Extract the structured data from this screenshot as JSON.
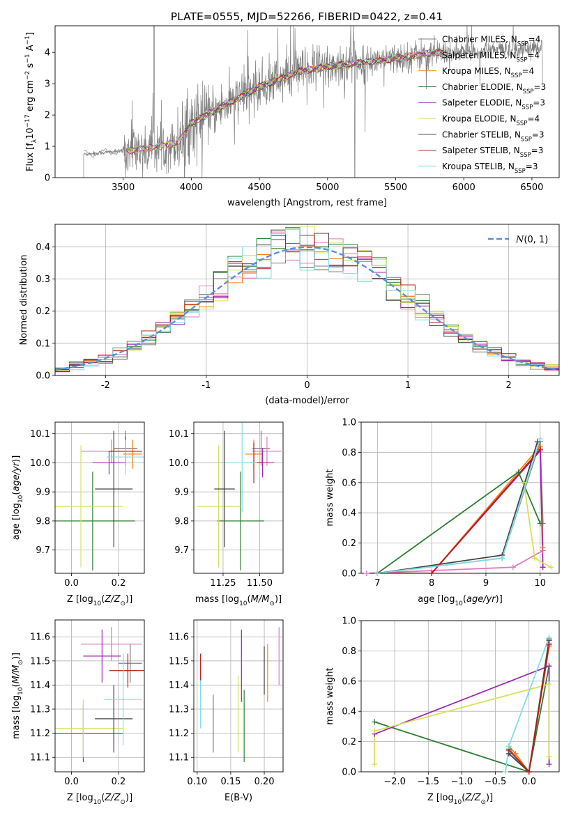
{
  "figure": {
    "title": "PLATE=0555, MJD=52266, FIBERID=0422, z=0.41"
  },
  "series_names": [
    "Chabrier MILES, N_SSP=4",
    "Salpeter MILES, N_SSP=4",
    "Kroupa MILES, N_SSP=4",
    "Chabrier ELODIE, N_SSP=3",
    "Salpeter ELODIE, N_SSP=3",
    "Kroupa ELODIE, N_SSP=4",
    "Chabrier STELIB, N_SSP=3",
    "Salpeter STELIB, N_SSP=3",
    "Kroupa STELIB, N_SSP=3"
  ],
  "colors": {
    "data": "#7f7f7f",
    "series": [
      "#7f7f7f",
      "#e377c2",
      "#ff7f0e",
      "#2e7d32",
      "#9c27b0",
      "#d4e157",
      "#444444",
      "#b71c1c",
      "#80deea"
    ],
    "gauss": "#5b8fd6",
    "grid": "#b0b0b0"
  },
  "chart_data": [
    {
      "type": "line",
      "panel": "spectrum",
      "xlabel": "wavelength [Angstrom, rest frame]",
      "ylabel": "Flux [f_λ 10^-17 erg cm^-2 s^-1 A^-1]",
      "xlim": [
        3000,
        6700
      ],
      "ylim": [
        0,
        4.85
      ],
      "xticks": [
        3500,
        4000,
        4500,
        5000,
        5500,
        6000,
        6500
      ],
      "yticks": [
        0,
        1,
        2,
        3,
        4
      ],
      "grid": false,
      "legend": "upper right",
      "continuum_knots": [
        [
          3210,
          0.75
        ],
        [
          3500,
          0.85
        ],
        [
          3700,
          0.95
        ],
        [
          3900,
          1.1
        ],
        [
          4000,
          1.75
        ],
        [
          4200,
          2.2
        ],
        [
          4500,
          2.9
        ],
        [
          4800,
          3.4
        ],
        [
          5000,
          3.55
        ],
        [
          5500,
          3.8
        ],
        [
          5800,
          4.0
        ],
        [
          6300,
          4.1
        ],
        [
          6580,
          4.15
        ]
      ],
      "data_range": [
        3210,
        6580
      ]
    },
    {
      "type": "histogram",
      "panel": "residuals",
      "xlabel": "(data-model)/error",
      "ylabel": "Normed distribution",
      "xlim": [
        -2.5,
        2.5
      ],
      "ylim": [
        0,
        0.47
      ],
      "xticks": [
        -2,
        -1,
        0,
        1,
        2
      ],
      "yticks": [
        0.0,
        0.1,
        0.2,
        0.3,
        0.4
      ],
      "grid": true,
      "legend": "upper right",
      "gauss_label": "N(0,1)",
      "bin_edges": [
        -2.5,
        2.5
      ],
      "bin_count": 35
    },
    {
      "type": "scatter",
      "panel": "age-vs-Z",
      "xlabel": "Z [log10(Z/Z⊙)]",
      "ylabel": "age [log10(age/yr)]",
      "xlim": [
        -0.07,
        0.31
      ],
      "ylim": [
        9.62,
        10.14
      ],
      "xticks": [
        0.0,
        0.2
      ],
      "yticks": [
        9.7,
        9.8,
        9.9,
        10.0,
        10.1
      ],
      "grid": true,
      "points": [
        {
          "x": 0.23,
          "y": 10.05,
          "xerr": 0.05,
          "yerr": 0.06
        },
        {
          "x": 0.17,
          "y": 10.04,
          "xerr": 0.13,
          "yerr": 0.04
        },
        {
          "x": 0.26,
          "y": 10.03,
          "xerr": 0.04,
          "yerr": 0.05
        },
        {
          "x": 0.09,
          "y": 9.8,
          "xerr": 0.18,
          "yerr": 0.17
        },
        {
          "x": 0.16,
          "y": 10.0,
          "xerr": 0.07,
          "yerr": 0.04
        },
        {
          "x": 0.04,
          "y": 9.85,
          "xerr": 0.18,
          "yerr": 0.21
        },
        {
          "x": 0.18,
          "y": 9.91,
          "xerr": 0.08,
          "yerr": 0.2
        },
        {
          "x": 0.23,
          "y": 10.04,
          "xerr": 0.07,
          "yerr": 0.05
        },
        {
          "x": 0.23,
          "y": 10.02,
          "xerr": 0.08,
          "yerr": 0.06
        }
      ]
    },
    {
      "type": "scatter",
      "panel": "age-vs-mass",
      "xlabel": "mass [log10(M/M⊙)]",
      "ylabel": "",
      "xlim": [
        11.05,
        11.66
      ],
      "ylim": [
        9.62,
        10.14
      ],
      "xticks": [
        11.25,
        11.5
      ],
      "yticks": [
        9.7,
        9.8,
        9.9,
        10.0,
        10.1
      ],
      "grid": true,
      "points": [
        {
          "x": 11.51,
          "y": 10.05,
          "xerr": 0.06,
          "yerr": 0.06
        },
        {
          "x": 11.55,
          "y": 10.04,
          "xerr": 0.1,
          "yerr": 0.05
        },
        {
          "x": 11.46,
          "y": 10.03,
          "xerr": 0.06,
          "yerr": 0.05
        },
        {
          "x": 11.37,
          "y": 9.8,
          "xerr": 0.16,
          "yerr": 0.17
        },
        {
          "x": 11.52,
          "y": 10.0,
          "xerr": 0.08,
          "yerr": 0.05
        },
        {
          "x": 11.22,
          "y": 9.85,
          "xerr": 0.15,
          "yerr": 0.21
        },
        {
          "x": 11.26,
          "y": 9.91,
          "xerr": 0.07,
          "yerr": 0.2
        },
        {
          "x": 11.46,
          "y": 10.0,
          "xerr": 0.06,
          "yerr": 0.07
        },
        {
          "x": 11.38,
          "y": 10.0,
          "xerr": 0.1,
          "yerr": 0.17
        }
      ]
    },
    {
      "type": "line",
      "panel": "massweight-vs-age",
      "xlabel": "age [log10(age/yr)]",
      "ylabel": "mass weight",
      "xlim": [
        6.7,
        10.35
      ],
      "ylim": [
        0,
        1.0
      ],
      "xticks": [
        7,
        8,
        9,
        10
      ],
      "yticks": [
        0.0,
        0.2,
        0.4,
        0.6,
        0.8,
        1.0
      ],
      "grid": true,
      "series": [
        {
          "x": [
            7.0,
            9.3,
            10.0,
            10.05
          ],
          "y": [
            0.0,
            0.1,
            0.87,
            0.33
          ]
        },
        {
          "x": [
            6.8,
            9.5,
            10.05
          ],
          "y": [
            0.0,
            0.04,
            0.15
          ]
        },
        {
          "x": [
            7.0,
            8.0,
            10.0,
            10.05
          ],
          "y": [
            0.0,
            0.0,
            0.84,
            0.17
          ]
        },
        {
          "x": [
            7.0,
            9.6,
            10.0
          ],
          "y": [
            0.0,
            0.67,
            0.33
          ]
        },
        {
          "x": [
            8.0,
            10.0,
            10.05
          ],
          "y": [
            0.0,
            0.81,
            0.04
          ]
        },
        {
          "x": [
            9.7,
            9.9,
            10.2
          ],
          "y": [
            0.6,
            0.1,
            0.04
          ]
        },
        {
          "x": [
            7.0,
            9.3,
            9.95
          ],
          "y": [
            0.0,
            0.12,
            0.87
          ]
        },
        {
          "x": [
            7.0,
            8.0,
            10.0
          ],
          "y": [
            0.0,
            0.0,
            0.82
          ]
        },
        {
          "x": [
            7.0,
            9.3,
            10.0
          ],
          "y": [
            0.0,
            0.1,
            0.89
          ]
        }
      ]
    },
    {
      "type": "errorbar",
      "panel": "mass-vs-Z",
      "xlabel": "Z [log10(Z/Z⊙)]",
      "ylabel": "mass [log10(M/M⊙)]",
      "xlim": [
        -0.07,
        0.31
      ],
      "ylim": [
        11.04,
        11.67
      ],
      "xticks": [
        0.0,
        0.2
      ],
      "yticks": [
        11.1,
        11.2,
        11.3,
        11.4,
        11.5,
        11.6
      ],
      "grid": true,
      "points": [
        {
          "x": 0.25,
          "y": 11.49,
          "xerr": 0.05,
          "yerr": 0.08
        },
        {
          "x": 0.17,
          "y": 11.57,
          "xerr": 0.13,
          "yerr": 0.07
        },
        {
          "x": 0.24,
          "y": 11.46,
          "xerr": 0.04,
          "yerr": 0.05
        },
        {
          "x": 0.05,
          "y": 11.2,
          "xerr": 0.17,
          "yerr": 0.12
        },
        {
          "x": 0.13,
          "y": 11.52,
          "xerr": 0.08,
          "yerr": 0.11
        },
        {
          "x": 0.05,
          "y": 11.22,
          "xerr": 0.17,
          "yerr": 0.12
        },
        {
          "x": 0.18,
          "y": 11.26,
          "xerr": 0.08,
          "yerr": 0.14
        },
        {
          "x": 0.24,
          "y": 11.46,
          "xerr": 0.08,
          "yerr": 0.07
        },
        {
          "x": 0.22,
          "y": 11.34,
          "xerr": 0.08,
          "yerr": 0.19
        }
      ]
    },
    {
      "type": "errorbar",
      "panel": "mass-vs-EBV",
      "xlabel": "E(B-V)",
      "ylabel": "",
      "xlim": [
        0.095,
        0.228
      ],
      "ylim": [
        11.04,
        11.67
      ],
      "xticks": [
        0.1,
        0.15,
        0.2
      ],
      "yticks": [
        11.1,
        11.2,
        11.3,
        11.4,
        11.5,
        11.6
      ],
      "grid": true,
      "points": [
        {
          "x": 0.124,
          "y": 11.24,
          "xerr": 0,
          "yerr": 0.12
        },
        {
          "x": 0.222,
          "y": 11.52,
          "xerr": 0,
          "yerr": 0.12
        },
        {
          "x": 0.205,
          "y": 11.45,
          "xerr": 0,
          "yerr": 0.12
        },
        {
          "x": 0.17,
          "y": 11.23,
          "xerr": 0,
          "yerr": 0.15
        },
        {
          "x": 0.166,
          "y": 11.48,
          "xerr": 0,
          "yerr": 0.15
        },
        {
          "x": 0.161,
          "y": 11.28,
          "xerr": 0,
          "yerr": 0.16
        },
        {
          "x": 0.2,
          "y": 11.46,
          "xerr": 0,
          "yerr": 0.1
        },
        {
          "x": 0.105,
          "y": 11.44,
          "xerr": 0,
          "yerr": 0.09
        },
        {
          "x": 0.105,
          "y": 11.32,
          "xerr": 0,
          "yerr": 0.1
        }
      ]
    },
    {
      "type": "line",
      "panel": "massweight-vs-Z",
      "xlabel": "Z [log10(Z/Z⊙)]",
      "ylabel": "mass weight",
      "xlim": [
        -2.5,
        0.45
      ],
      "ylim": [
        0,
        1.0
      ],
      "xticks": [
        -2.0,
        -1.5,
        -1.0,
        -0.5,
        0.0
      ],
      "yticks": [
        0.0,
        0.2,
        0.4,
        0.6,
        0.8,
        1.0
      ],
      "grid": true,
      "series": [
        {
          "x": [
            -0.3,
            0.0,
            0.3
          ],
          "y": [
            0.14,
            0.0,
            0.88
          ]
        },
        {
          "x": [
            -0.3,
            0.0,
            0.3
          ],
          "y": [
            0.12,
            0.0,
            0.85
          ]
        },
        {
          "x": [
            -0.3,
            -0.2,
            0.0,
            0.3
          ],
          "y": [
            0.17,
            0.12,
            0.0,
            0.83
          ]
        },
        {
          "x": [
            -2.3,
            0.0,
            0.3
          ],
          "y": [
            0.33,
            0.0,
            0.7
          ]
        },
        {
          "x": [
            -2.3,
            0.3,
            0.3
          ],
          "y": [
            0.25,
            0.7,
            0.05
          ]
        },
        {
          "x": [
            -2.3,
            -2.3,
            0.3,
            0.3
          ],
          "y": [
            0.05,
            0.27,
            0.58,
            0.1
          ]
        },
        {
          "x": [
            -0.3,
            0.0,
            0.3
          ],
          "y": [
            0.12,
            0.0,
            0.87
          ]
        },
        {
          "x": [
            -0.3,
            0.0,
            0.3
          ],
          "y": [
            0.15,
            0.0,
            0.84
          ]
        },
        {
          "x": [
            -0.35,
            -0.3,
            0.3
          ],
          "y": [
            0.0,
            0.17,
            0.89
          ]
        }
      ]
    }
  ]
}
